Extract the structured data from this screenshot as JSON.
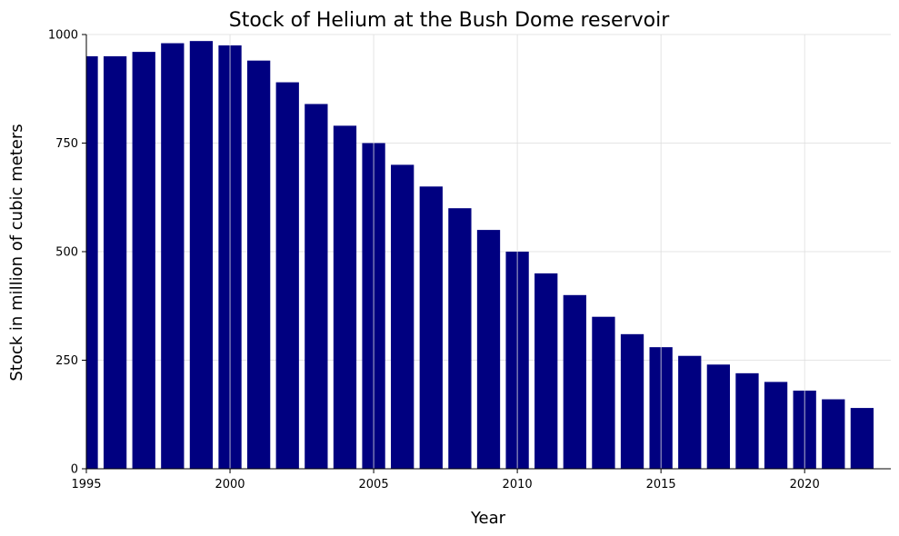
{
  "chart_data": {
    "type": "bar",
    "title": "Stock of Helium at the Bush Dome reservoir",
    "xlabel": "Year",
    "ylabel": "Stock in million of cubic meters",
    "x": [
      1995,
      1996,
      1997,
      1998,
      1999,
      2000,
      2001,
      2002,
      2003,
      2004,
      2005,
      2006,
      2007,
      2008,
      2009,
      2010,
      2011,
      2012,
      2013,
      2014,
      2015,
      2016,
      2017,
      2018,
      2019,
      2020,
      2021,
      2022
    ],
    "values": [
      950,
      950,
      960,
      980,
      985,
      975,
      940,
      890,
      840,
      790,
      750,
      700,
      650,
      600,
      550,
      500,
      450,
      400,
      350,
      310,
      280,
      260,
      240,
      220,
      200,
      180,
      160,
      140
    ],
    "xlim": [
      1995,
      2023
    ],
    "ylim": [
      0,
      1000
    ],
    "xticks": [
      1995,
      2000,
      2005,
      2010,
      2015,
      2020
    ],
    "yticks": [
      0,
      250,
      500,
      750,
      1000
    ],
    "bar_color": "#000080",
    "grid": true,
    "legend": false
  }
}
